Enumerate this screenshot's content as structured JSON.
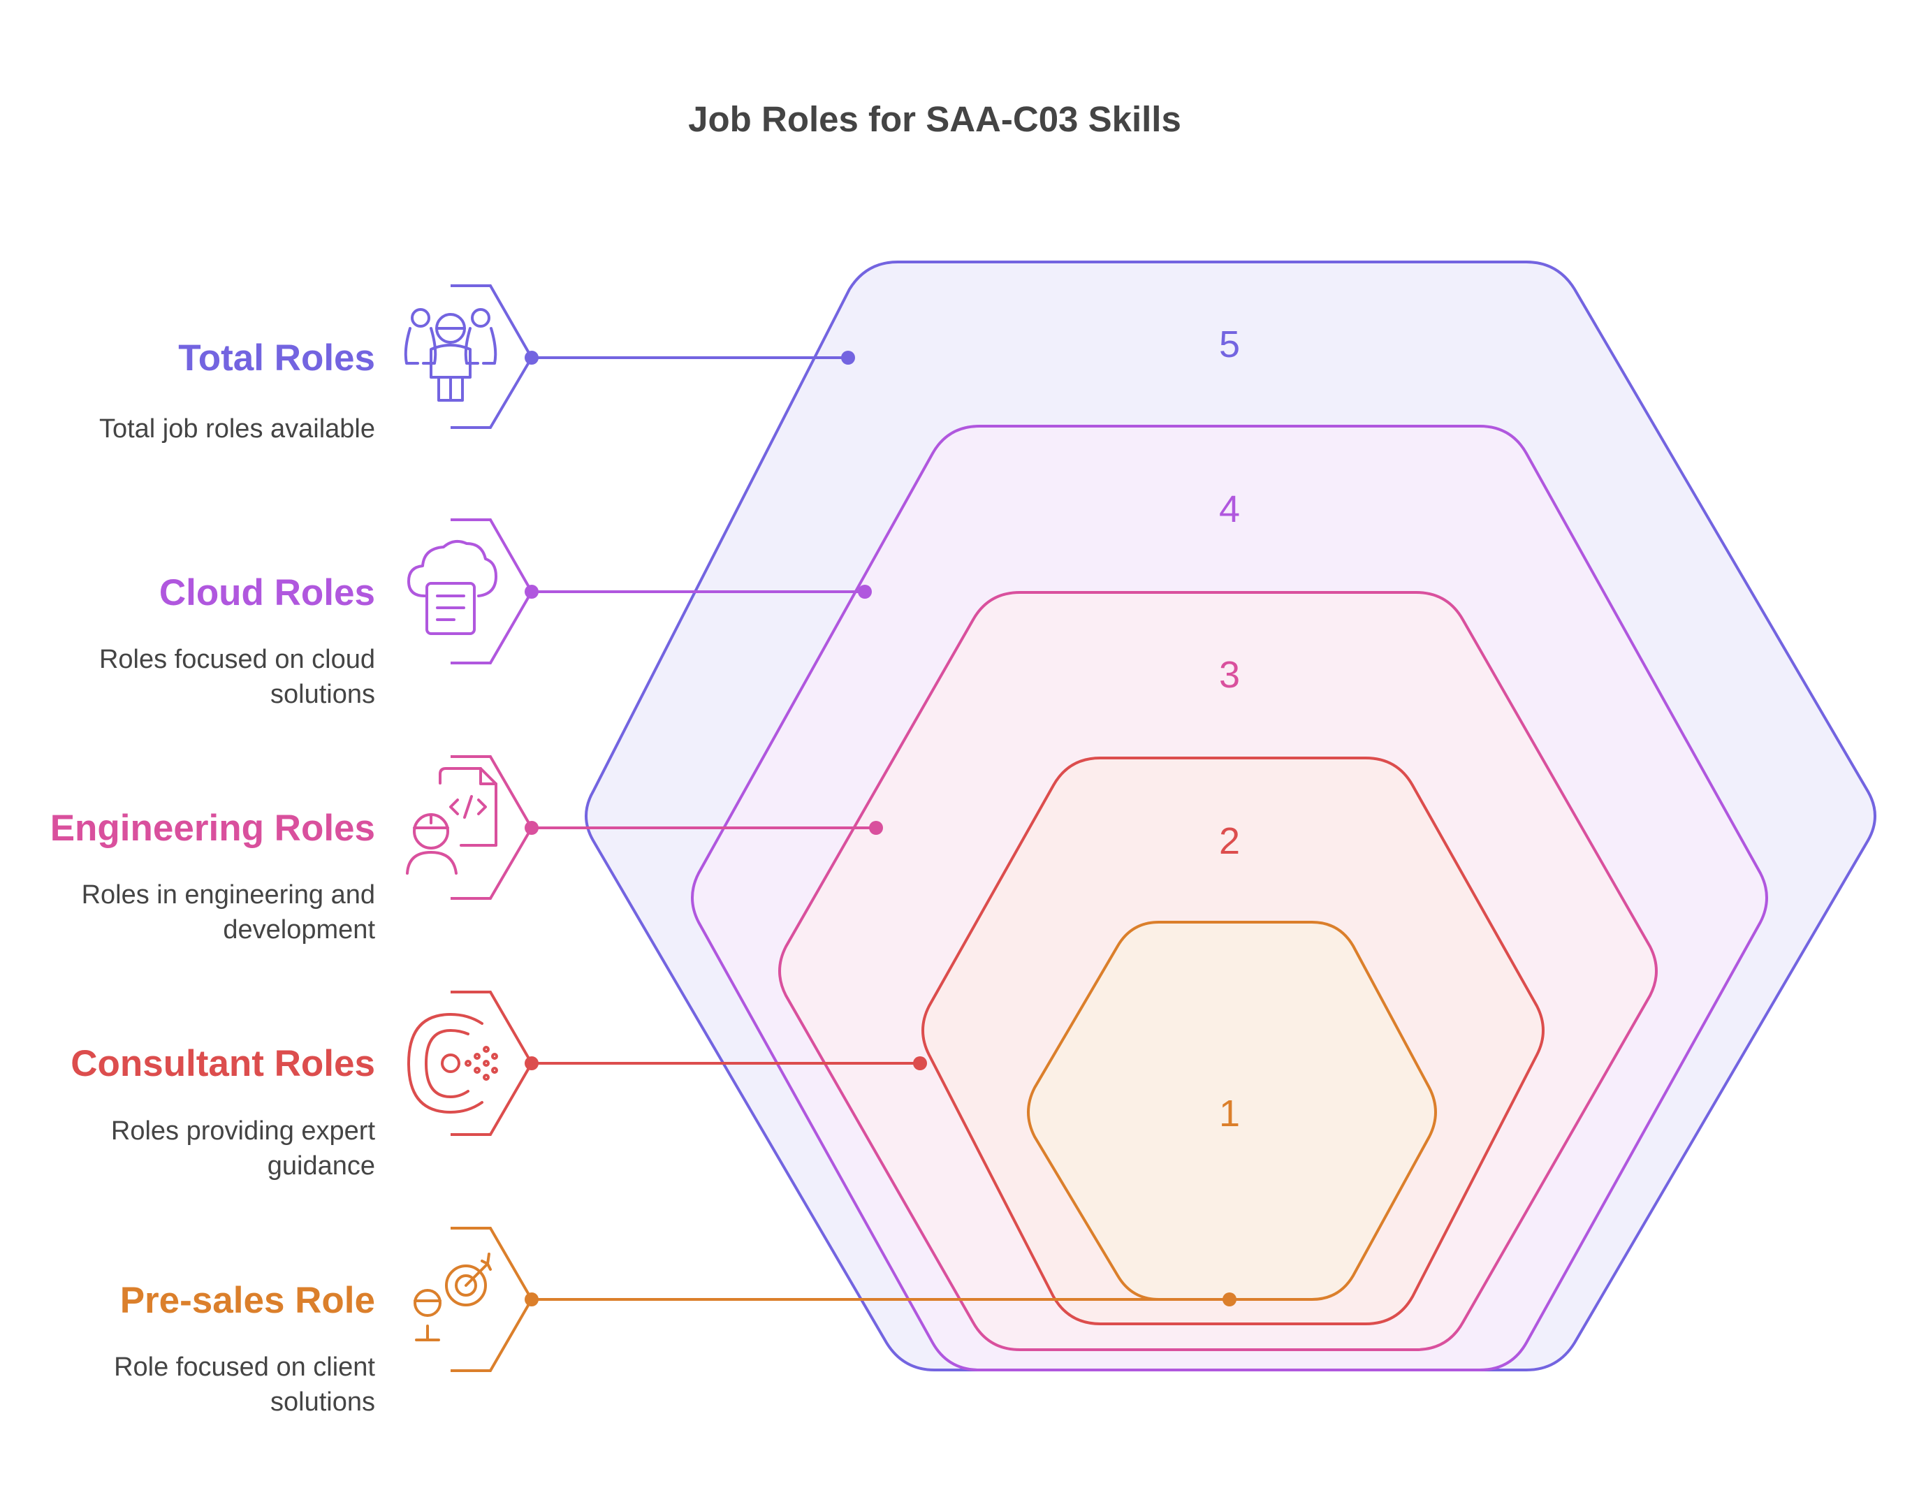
{
  "title": "Job Roles for SAA-C03 Skills",
  "colors": {
    "total": "#7364E0",
    "cloud": "#B057DE",
    "engineering": "#D9509D",
    "consultant": "#DC4D4D",
    "presales": "#DB7F2B"
  },
  "layers": [
    {
      "number": "5",
      "role": "total"
    },
    {
      "number": "4",
      "role": "cloud"
    },
    {
      "number": "3",
      "role": "engineering"
    },
    {
      "number": "2",
      "role": "consultant"
    },
    {
      "number": "1",
      "role": "presales"
    }
  ],
  "roles": [
    {
      "key": "total",
      "title": "Total Roles",
      "icon": "team-icon",
      "description": [
        "Total job roles available"
      ]
    },
    {
      "key": "cloud",
      "title": "Cloud Roles",
      "icon": "cloud-document-icon",
      "description": [
        "Roles focused on cloud",
        "solutions"
      ]
    },
    {
      "key": "engineering",
      "title": "Engineering Roles",
      "icon": "engineer-code-icon",
      "description": [
        "Roles in engineering and",
        "development"
      ]
    },
    {
      "key": "consultant",
      "title": "Consultant Roles",
      "icon": "consultant-target-icon",
      "description": [
        "Roles providing expert",
        "guidance"
      ]
    },
    {
      "key": "presales",
      "title": "Pre-sales Role",
      "icon": "presales-target-icon",
      "description": [
        "Role focused on client",
        "solutions"
      ]
    }
  ]
}
